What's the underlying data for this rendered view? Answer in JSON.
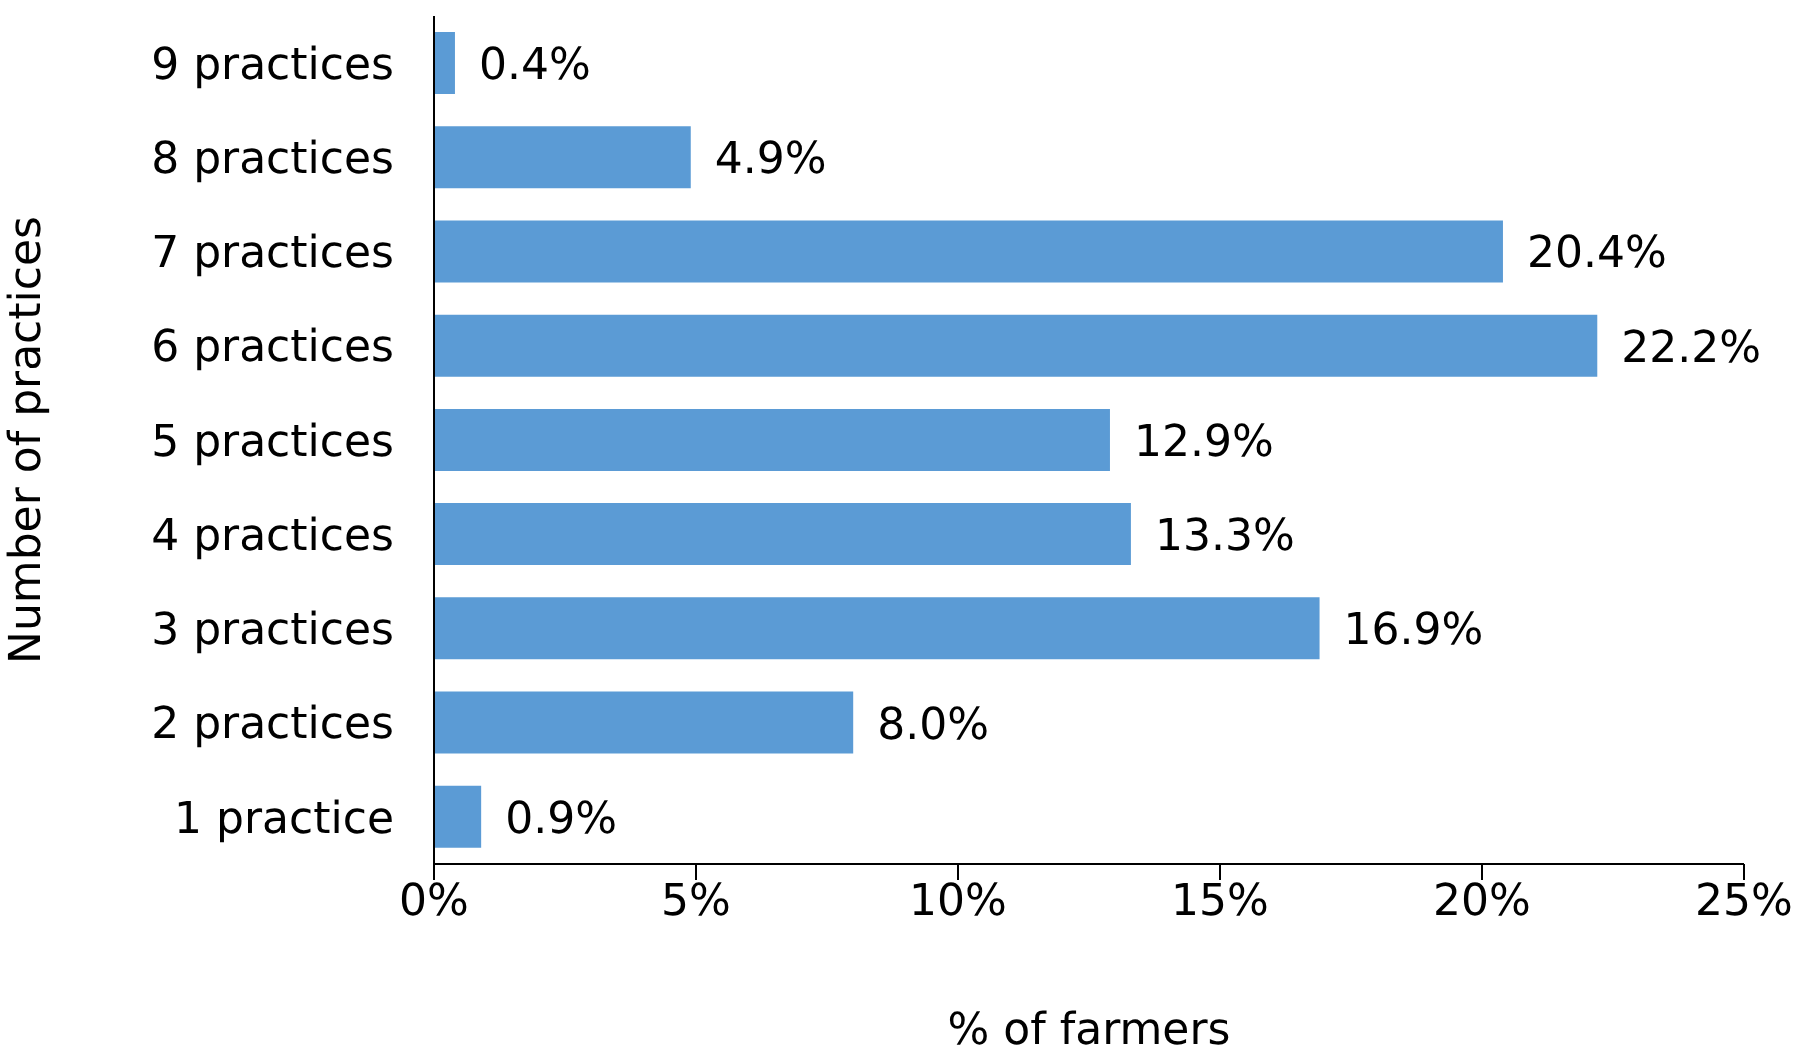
{
  "chart_data": {
    "type": "bar",
    "orientation": "horizontal",
    "xlabel": "% of farmers",
    "ylabel": "Number of practices",
    "categories": [
      "9 practices",
      "8 practices",
      "7 practices",
      "6 practices",
      "5 practices",
      "4 practices",
      "3 practices",
      "2 practices",
      "1 practice"
    ],
    "values": [
      0.4,
      4.9,
      20.4,
      22.2,
      12.9,
      13.3,
      16.9,
      8.0,
      0.9
    ],
    "value_labels": [
      "0.4%",
      "4.9%",
      "20.4%",
      "22.2%",
      "12.9%",
      "13.3%",
      "16.9%",
      "8.0%",
      "0.9%"
    ],
    "color": "#5b9bd5",
    "xlim": [
      0,
      25
    ],
    "xticks": [
      {
        "value": 0,
        "label": "0%"
      },
      {
        "value": 5,
        "label": "5%"
      },
      {
        "value": 10,
        "label": "10%"
      },
      {
        "value": 15,
        "label": "15%"
      },
      {
        "value": 20,
        "label": "20%"
      },
      {
        "value": 25,
        "label": "25%"
      }
    ],
    "grid": false,
    "legend": false
  }
}
